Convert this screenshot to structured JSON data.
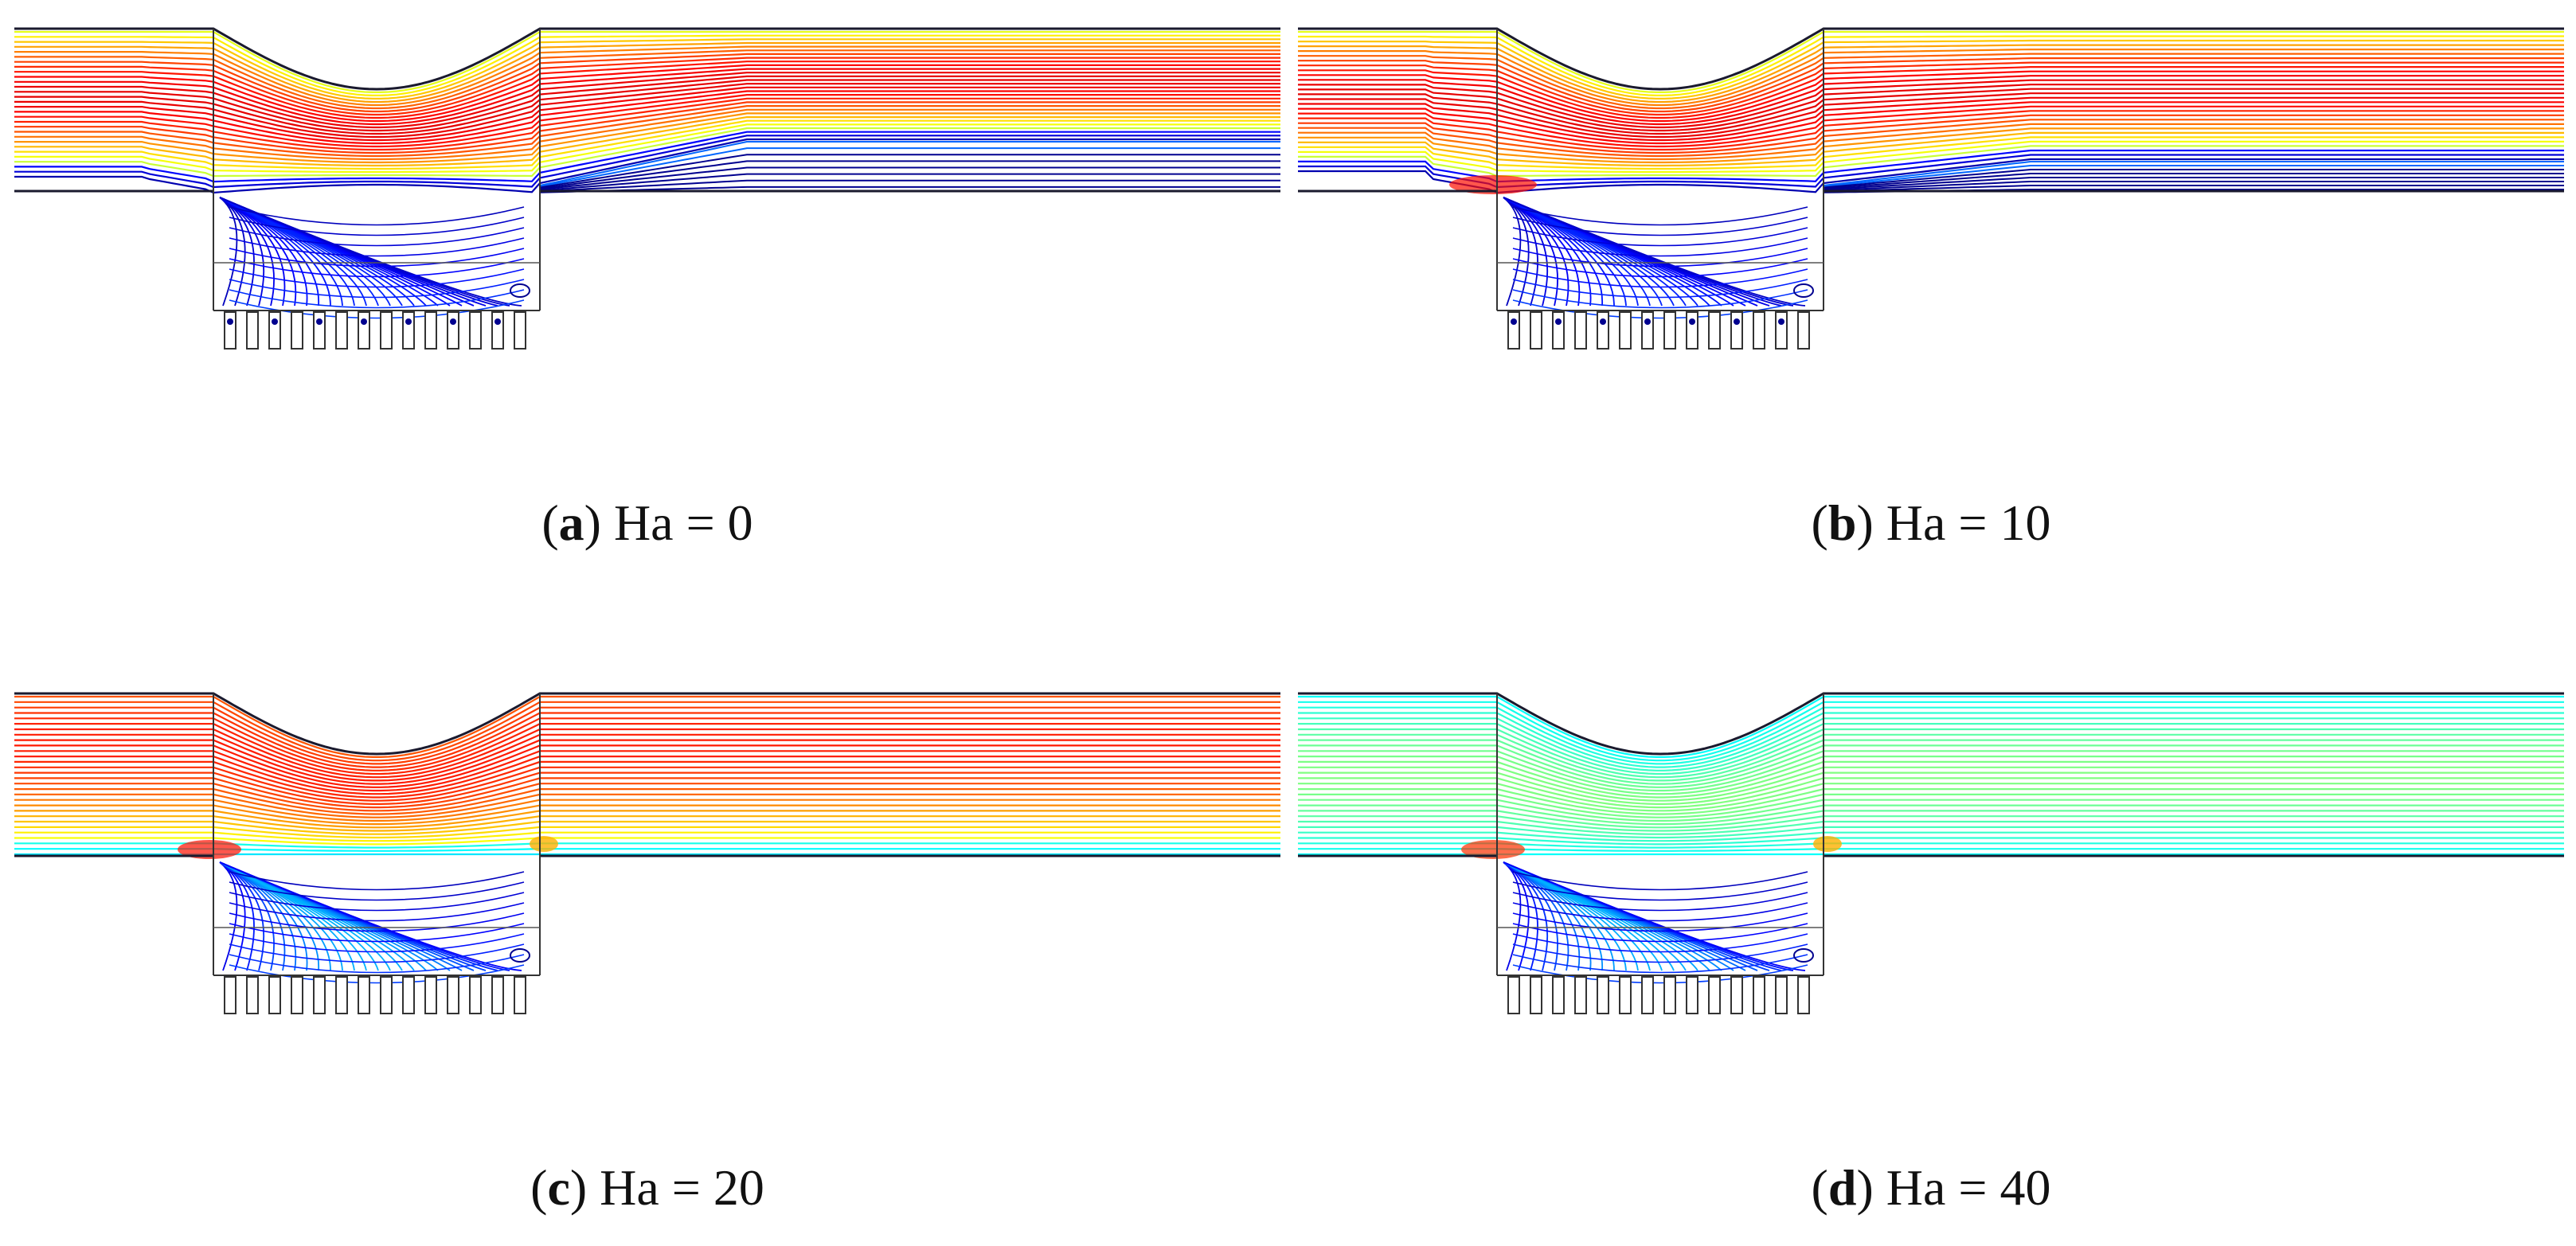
{
  "panels": [
    {
      "id": "a",
      "letter": "a",
      "label": "Ha = 0",
      "ha": 0,
      "core": "red",
      "recirculation": true
    },
    {
      "id": "b",
      "letter": "b",
      "label": "Ha = 10",
      "ha": 10,
      "core": "red",
      "recirculation": true
    },
    {
      "id": "c",
      "letter": "c",
      "label": "Ha = 20",
      "ha": 20,
      "core": "orange",
      "recirculation": false
    },
    {
      "id": "d",
      "letter": "d",
      "label": "Ha = 40",
      "ha": 40,
      "core": "cyan",
      "recirculation": false
    }
  ],
  "colormap": [
    "#00008f",
    "#0000ff",
    "#0080ff",
    "#00ffff",
    "#80ff80",
    "#ffff00",
    "#ff8000",
    "#ff0000",
    "#800000"
  ]
}
